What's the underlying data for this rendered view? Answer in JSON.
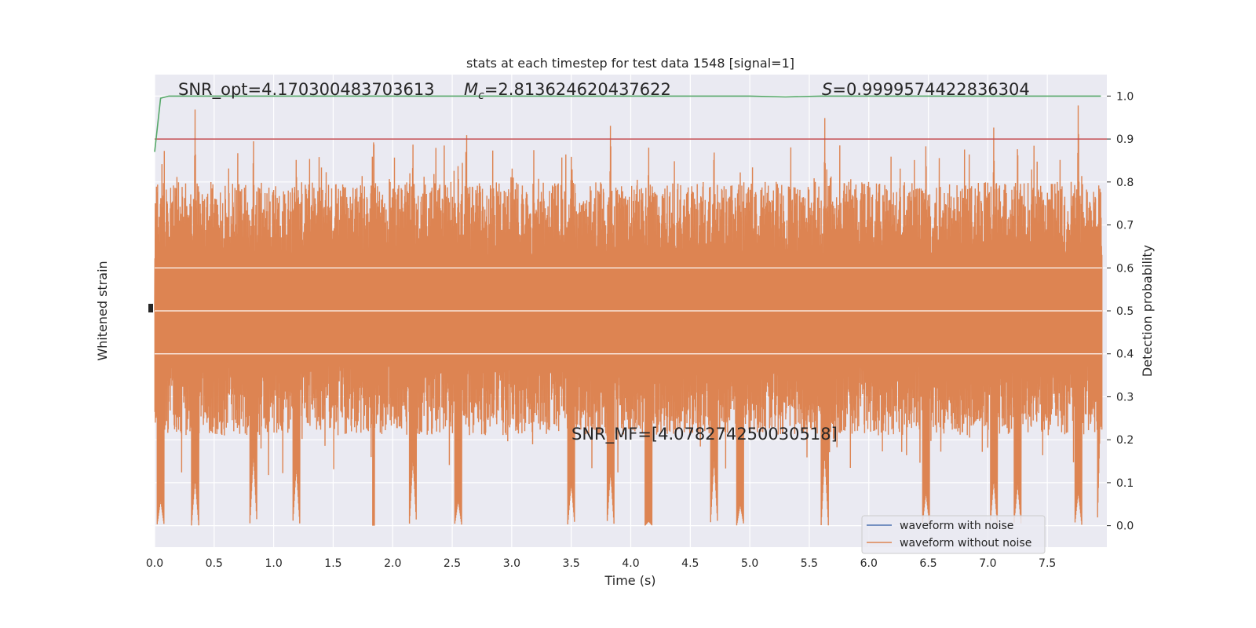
{
  "chart_data": {
    "type": "line",
    "title": "stats at each timestep for test data 1548 [signal=1]",
    "xlabel": "Time (s)",
    "ylabel_left": "Whitened strain",
    "ylabel_right": "Detection probability",
    "xlim": [
      0.0,
      8.0
    ],
    "ylim_right": [
      -0.05,
      1.05
    ],
    "x_ticks": [
      "0.0",
      "0.5",
      "1.0",
      "1.5",
      "2.0",
      "2.5",
      "3.0",
      "3.5",
      "4.0",
      "4.5",
      "5.0",
      "5.5",
      "6.0",
      "6.5",
      "7.0",
      "7.5"
    ],
    "y_right_ticks": [
      "0.0",
      "0.1",
      "0.2",
      "0.3",
      "0.4",
      "0.5",
      "0.6",
      "0.7",
      "0.8",
      "0.9",
      "1.0"
    ],
    "grid": true,
    "legend_position": "bottom-right",
    "annotations": {
      "snr_opt": "SNR_opt=4.170300483703613",
      "mc_symbol": "M",
      "mc_sub": "c",
      "mc_value": "=2.813624620437622",
      "s_symbol": "S",
      "s_value": "=0.9999574422836304",
      "snr_mf": "SNR_MF=[4.078274250030518]"
    },
    "series": [
      {
        "name": "waveform with noise",
        "color": "#4c72b0"
      },
      {
        "name": "waveform without noise",
        "color": "#dd8452"
      }
    ],
    "threshold": {
      "value": 0.9,
      "color": "#c44e52"
    },
    "detection_probability": {
      "color": "#55a868",
      "x": [
        0.0,
        0.05,
        0.12,
        0.5,
        1.0,
        2.0,
        3.0,
        4.0,
        4.5,
        5.0,
        5.3,
        5.6,
        6.0,
        7.0,
        7.5,
        7.95
      ],
      "y": [
        0.87,
        0.995,
        1.0,
        1.0,
        1.0,
        1.0,
        1.0,
        1.0,
        1.0,
        1.0,
        0.998,
        1.0,
        1.0,
        1.0,
        1.0,
        1.0
      ]
    },
    "whitened_strain_envelope": {
      "x": [
        0.05,
        0.34,
        0.83,
        1.19,
        1.84,
        2.17,
        2.55,
        3.5,
        3.83,
        4.15,
        4.7,
        4.92,
        5.63,
        6.48,
        7.05,
        7.25,
        7.76,
        7.95
      ],
      "peak_high": [
        0.8,
        0.97,
        0.92,
        0.88,
        0.92,
        0.91,
        0.87,
        0.88,
        0.96,
        0.89,
        0.91,
        0.83,
        0.95,
        0.91,
        0.94,
        0.92,
        1.0,
        0.76
      ],
      "peak_low": [
        0.06,
        0.11,
        0.17,
        0.14,
        0.0,
        0.16,
        0.06,
        0.1,
        0.13,
        0.01,
        0.16,
        0.05,
        0.17,
        0.08,
        0.11,
        0.1,
        0.08,
        0.31
      ]
    }
  }
}
